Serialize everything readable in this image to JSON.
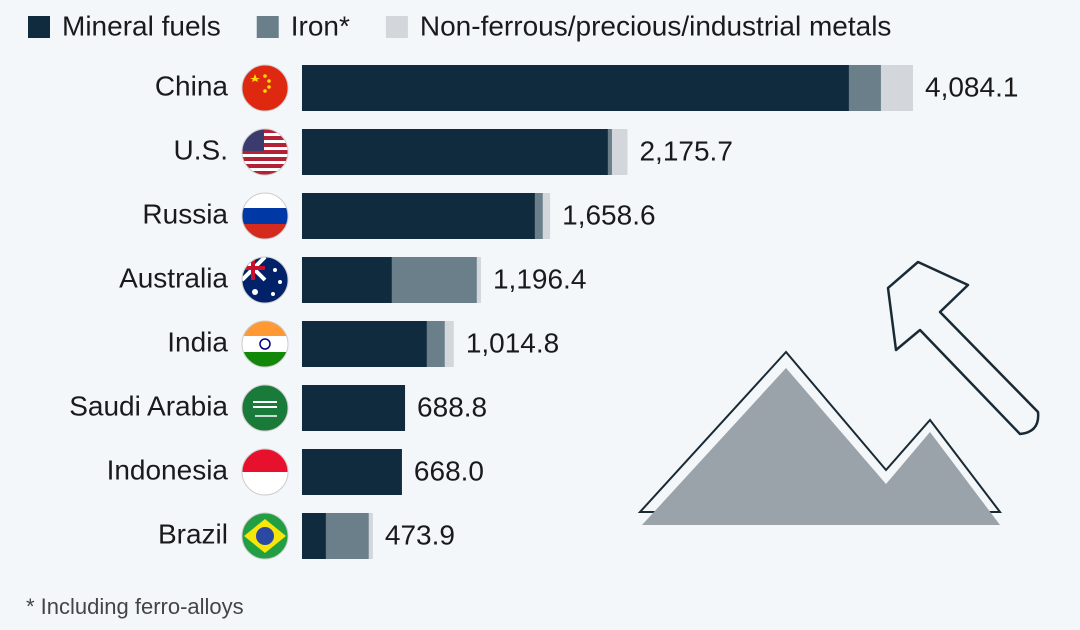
{
  "chart_data": {
    "type": "stacked-barh",
    "categories": [
      "China",
      "U.S.",
      "Russia",
      "Australia",
      "India",
      "Saudi Arabia",
      "Indonesia",
      "Brazil"
    ],
    "series": [
      {
        "name": "Mineral fuels",
        "color": "#0f2b3d",
        "values": [
          3656,
          2045,
          1557,
          601,
          835,
          688.8,
          668.0,
          160
        ]
      },
      {
        "name": "Iron*",
        "color": "#6b7f8b",
        "values": [
          214,
          27,
          53,
          568,
          120,
          0,
          0,
          287
        ]
      },
      {
        "name": "Non-ferrous/precious/industrial metals",
        "color": "#d3d7db",
        "values": [
          214.1,
          103.7,
          48.6,
          27.4,
          59.8,
          0,
          0,
          26.9
        ]
      }
    ],
    "totals": [
      4084.1,
      2175.7,
      1658.6,
      1196.4,
      1014.8,
      688.8,
      668.0,
      473.9
    ],
    "total_labels": [
      "4,084.1",
      "2,175.7",
      "1,658.6",
      "1,196.4",
      "1,014.8",
      "688.8",
      "668.0",
      "473.9"
    ],
    "note": "* Including ferro-alloys"
  }
}
